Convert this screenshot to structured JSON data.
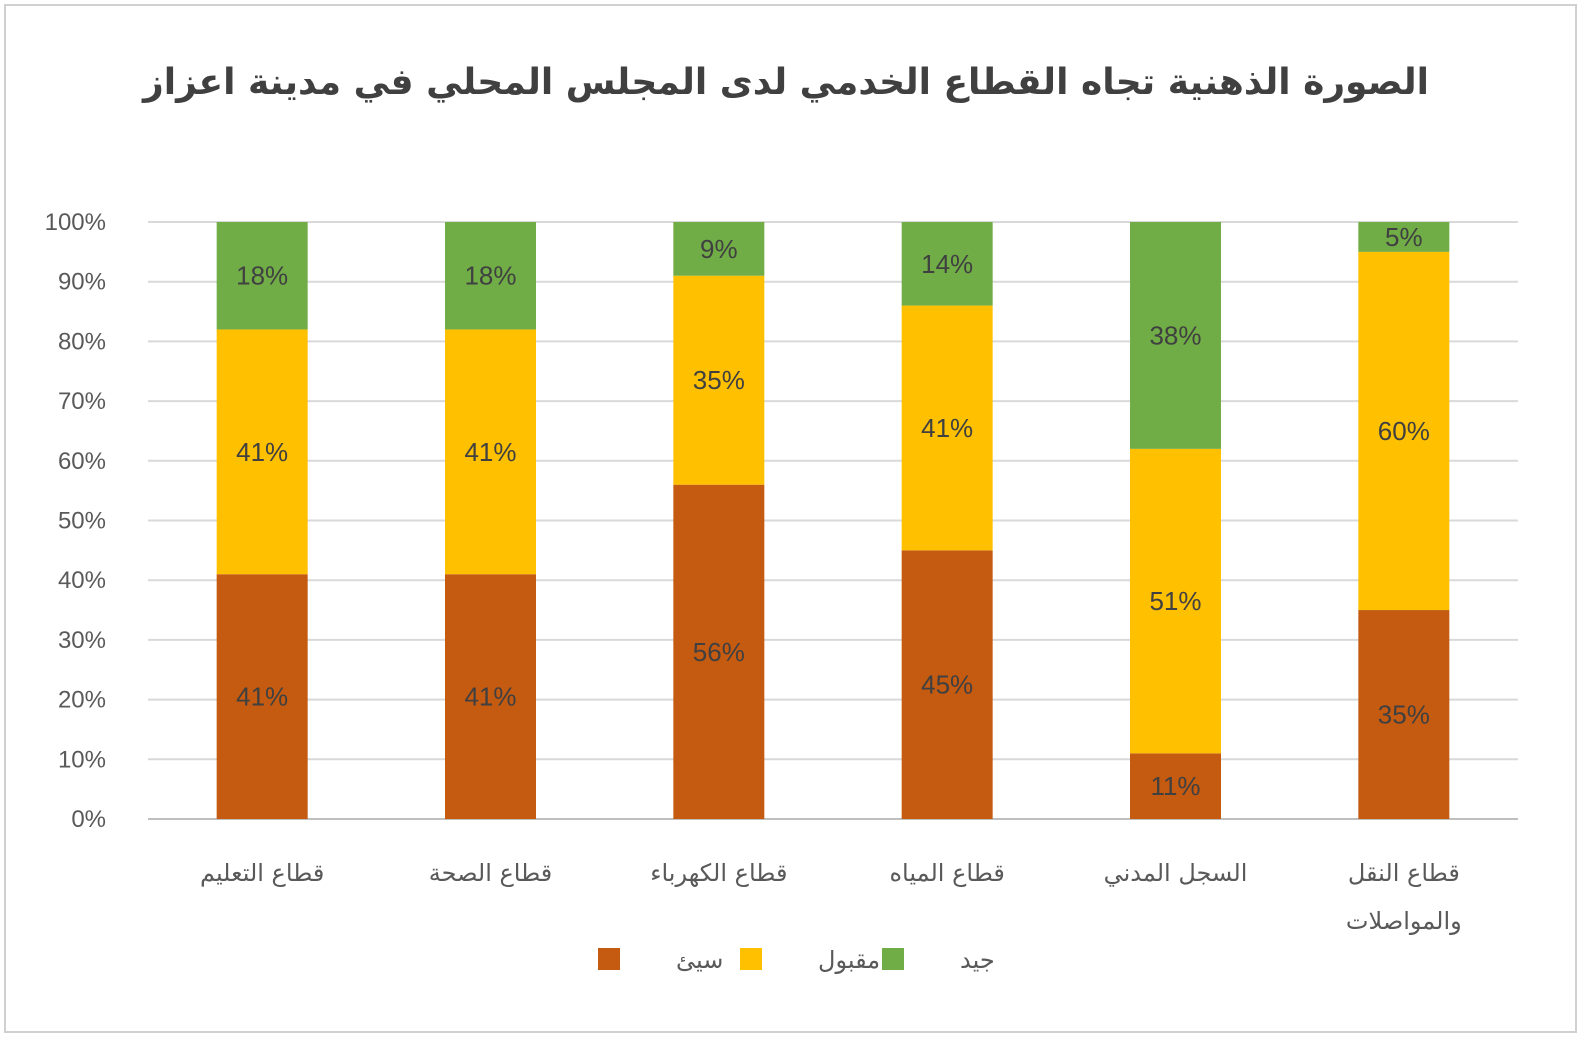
{
  "chart_data": {
    "type": "bar",
    "stacked": "percent",
    "title": "الصورة الذهنية تجاه القطاع الخدمي لدى المجلس المحلي في مدينة اعزاز",
    "categories": [
      "قطاع التعليم",
      "قطاع الصحة",
      "قطاع الكهرباء",
      "قطاع المياه",
      "السجل المدني",
      "قطاع النقل والمواصلات"
    ],
    "category_lines": [
      [
        "قطاع التعليم"
      ],
      [
        "قطاع الصحة"
      ],
      [
        "قطاع الكهرباء"
      ],
      [
        "قطاع المياه"
      ],
      [
        "السجل المدني"
      ],
      [
        "قطاع النقل",
        "والمواصلات"
      ]
    ],
    "series": [
      {
        "name": "سيئ",
        "color": "#C55A11",
        "values": [
          41,
          41,
          56,
          45,
          11,
          35
        ]
      },
      {
        "name": "مقبول",
        "color": "#FFC000",
        "values": [
          41,
          41,
          35,
          41,
          51,
          60
        ]
      },
      {
        "name": "جيد",
        "color": "#70AD47",
        "values": [
          18,
          18,
          9,
          14,
          38,
          5
        ]
      }
    ],
    "value_format": "percent",
    "ylim": [
      0,
      100
    ],
    "yticks": [
      "0%",
      "10%",
      "20%",
      "30%",
      "40%",
      "50%",
      "60%",
      "70%",
      "80%",
      "90%",
      "100%"
    ],
    "grid": true,
    "legend": "bottom",
    "xlabel": "",
    "ylabel": ""
  }
}
